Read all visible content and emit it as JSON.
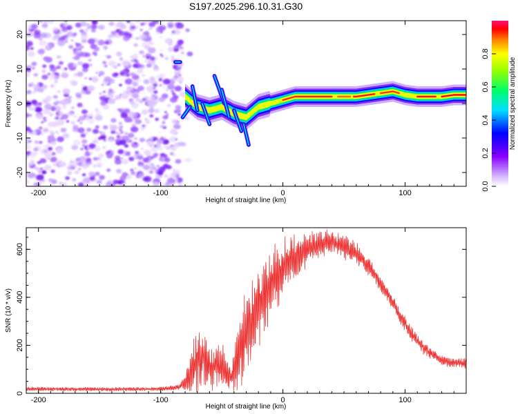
{
  "title": "S197.2025.296.10.31.G30",
  "chart_data": [
    {
      "type": "heatmap",
      "xlabel": "Height of straight line (km)",
      "ylabel": "Frequency (Hz)",
      "xlim": [
        -210,
        150
      ],
      "ylim": [
        -24,
        24
      ],
      "xticks": [
        -200,
        -100,
        0,
        100
      ],
      "yticks": [
        -20,
        -10,
        0,
        10,
        20
      ],
      "colorbar": {
        "label": "Normalized spectral amplitude",
        "range": [
          0,
          1
        ],
        "ticks": [
          0.0,
          0.2,
          0.4,
          0.6,
          0.8
        ]
      },
      "features": {
        "noise_region_x": [
          -210,
          -82
        ],
        "ridge": {
          "x": [
            -80,
            -70,
            -60,
            -50,
            -40,
            -30,
            -20,
            -10,
            0,
            10,
            20,
            30,
            40,
            50,
            60,
            70,
            80,
            90,
            100,
            110,
            120,
            130,
            140,
            150
          ],
          "freq": [
            2,
            -1,
            -2,
            -1,
            -3,
            -4,
            -1,
            0,
            1,
            2,
            2,
            2,
            2,
            2,
            2,
            2.5,
            3,
            3.5,
            2.5,
            2,
            2,
            2,
            2.5,
            2.5
          ]
        }
      }
    },
    {
      "type": "line",
      "xlabel": "Height of straight line (km)",
      "ylabel": "SNR (10 * v/v)",
      "xlim": [
        -210,
        150
      ],
      "ylim": [
        0,
        690
      ],
      "xticks": [
        -200,
        -100,
        0,
        100
      ],
      "yticks": [
        0,
        200,
        400,
        600
      ],
      "series": [
        {
          "name": "SNR",
          "color": "#ee3333",
          "x": [
            -210,
            -180,
            -150,
            -120,
            -100,
            -85,
            -78,
            -72,
            -66,
            -62,
            -58,
            -54,
            -50,
            -46,
            -42,
            -38,
            -34,
            -30,
            -26,
            -22,
            -18,
            -14,
            -10,
            -6,
            -2,
            2,
            6,
            10,
            15,
            20,
            25,
            30,
            35,
            40,
            45,
            50,
            55,
            60,
            65,
            70,
            75,
            80,
            85,
            90,
            95,
            100,
            105,
            110,
            115,
            120,
            125,
            130,
            135,
            140,
            145,
            150
          ],
          "mid": [
            18,
            18,
            17,
            17,
            18,
            25,
            60,
            120,
            160,
            130,
            110,
            110,
            120,
            80,
            70,
            140,
            200,
            260,
            270,
            330,
            380,
            420,
            450,
            480,
            500,
            540,
            560,
            570,
            585,
            600,
            610,
            620,
            625,
            630,
            620,
            610,
            600,
            580,
            560,
            530,
            500,
            460,
            420,
            380,
            330,
            290,
            250,
            220,
            190,
            170,
            155,
            140,
            130,
            130,
            128,
            125
          ],
          "amp": [
            8,
            8,
            8,
            8,
            8,
            10,
            50,
            120,
            110,
            100,
            90,
            80,
            90,
            60,
            50,
            120,
            150,
            170,
            170,
            160,
            150,
            140,
            140,
            130,
            120,
            110,
            100,
            90,
            80,
            70,
            60,
            55,
            50,
            50,
            50,
            50,
            45,
            45,
            40,
            40,
            35,
            35,
            30,
            30,
            30,
            30,
            28,
            25,
            25,
            22,
            22,
            20,
            20,
            20,
            20,
            20
          ]
        }
      ]
    }
  ]
}
